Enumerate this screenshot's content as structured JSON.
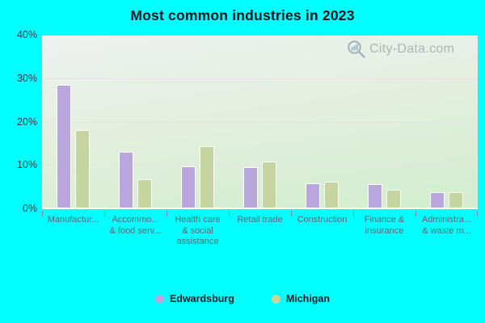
{
  "title": "Most common industries in 2023",
  "watermark": {
    "text": "City-Data.com"
  },
  "colors": {
    "background": "#00FFFF",
    "edwardsburg_bar": "#b9a6dc",
    "michigan_bar": "#c6d59f",
    "bar_border": "#ffffff",
    "gridline": "#ecdfe9",
    "axis_text": "#333b42",
    "category_text": "#5a6a73",
    "title_text": "#16161f",
    "watermark_text": "#9fa6ae"
  },
  "chart_data": {
    "type": "bar",
    "title": "Most common industries in 2023",
    "categories": [
      [
        "Manufactur..."
      ],
      [
        "Accommo...",
        "& food serv..."
      ],
      [
        "Health care",
        "& social",
        "assistance"
      ],
      [
        "Retail trade"
      ],
      [
        "Construction"
      ],
      [
        "Finance &",
        "insurance"
      ],
      [
        "Administra...",
        "& waste m..."
      ]
    ],
    "series": [
      {
        "name": "Edwardsburg",
        "color": "#b9a6dc",
        "values": [
          28.4,
          13.0,
          9.6,
          9.4,
          5.8,
          5.5,
          3.8
        ]
      },
      {
        "name": "Michigan",
        "color": "#c6d59f",
        "values": [
          18.1,
          6.7,
          14.3,
          10.8,
          6.1,
          4.2,
          3.8
        ]
      }
    ],
    "ylabel": "",
    "xlabel": "",
    "ylim": [
      0,
      40
    ],
    "yticks": [
      0,
      10,
      20,
      30,
      40
    ],
    "ytick_labels": [
      "0%",
      "10%",
      "20%",
      "30%",
      "40%"
    ],
    "grid": true,
    "legend_position": "bottom"
  }
}
